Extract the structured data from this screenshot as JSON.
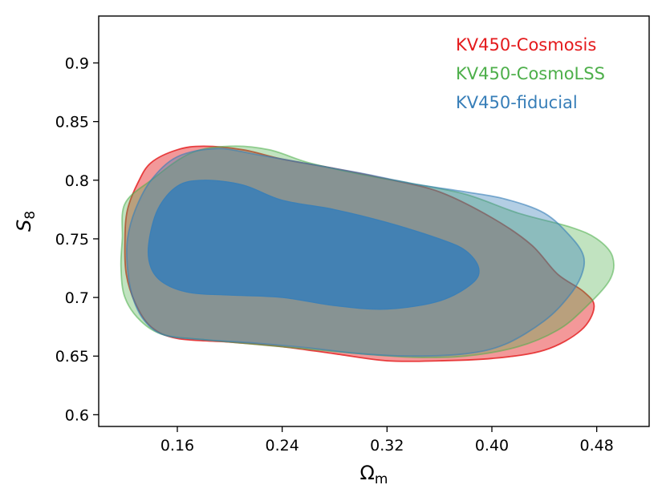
{
  "chart_data": {
    "type": "contour",
    "title": "",
    "xlabel": "Ω",
    "xlabel_sub": "m",
    "ylabel": "S",
    "ylabel_sub": "8",
    "xlim": [
      0.1,
      0.52
    ],
    "ylim": [
      0.59,
      0.94
    ],
    "x_ticks": [
      0.16,
      0.24,
      0.32,
      0.4,
      0.48
    ],
    "x_tick_labels": [
      "0.16",
      "0.24",
      "0.32",
      "0.40",
      "0.48"
    ],
    "y_ticks": [
      0.6,
      0.65,
      0.7,
      0.75,
      0.8,
      0.85,
      0.9
    ],
    "y_tick_labels": [
      "0.6",
      "0.65",
      "0.7",
      "0.75",
      "0.8",
      "0.85",
      "0.9"
    ],
    "grid": false,
    "legend_position": "top-right",
    "legend": [
      {
        "label": "KV450-Cosmosis",
        "color": "#e41a1c"
      },
      {
        "label": "KV450-CosmoLSS",
        "color": "#4daf4a"
      },
      {
        "label": "KV450-fiducial",
        "color": "#377eb8"
      }
    ],
    "series": [
      {
        "name": "KV450-Cosmosis",
        "color": "#e41a1c",
        "outer_contour": [
          [
            0.12,
            0.75
          ],
          [
            0.122,
            0.775
          ],
          [
            0.13,
            0.798
          ],
          [
            0.14,
            0.815
          ],
          [
            0.16,
            0.826
          ],
          [
            0.18,
            0.829
          ],
          [
            0.21,
            0.826
          ],
          [
            0.24,
            0.818
          ],
          [
            0.28,
            0.81
          ],
          [
            0.32,
            0.801
          ],
          [
            0.36,
            0.79
          ],
          [
            0.4,
            0.768
          ],
          [
            0.43,
            0.745
          ],
          [
            0.45,
            0.72
          ],
          [
            0.47,
            0.705
          ],
          [
            0.478,
            0.692
          ],
          [
            0.468,
            0.672
          ],
          [
            0.44,
            0.655
          ],
          [
            0.4,
            0.648
          ],
          [
            0.36,
            0.646
          ],
          [
            0.32,
            0.646
          ],
          [
            0.28,
            0.652
          ],
          [
            0.24,
            0.658
          ],
          [
            0.2,
            0.662
          ],
          [
            0.16,
            0.665
          ],
          [
            0.14,
            0.675
          ],
          [
            0.128,
            0.695
          ],
          [
            0.121,
            0.72
          ]
        ]
      },
      {
        "name": "KV450-CosmoLSS",
        "color": "#4daf4a",
        "outer_contour": [
          [
            0.118,
            0.75
          ],
          [
            0.12,
            0.78
          ],
          [
            0.14,
            0.8
          ],
          [
            0.17,
            0.823
          ],
          [
            0.2,
            0.829
          ],
          [
            0.23,
            0.826
          ],
          [
            0.26,
            0.815
          ],
          [
            0.3,
            0.805
          ],
          [
            0.34,
            0.797
          ],
          [
            0.38,
            0.788
          ],
          [
            0.42,
            0.772
          ],
          [
            0.46,
            0.76
          ],
          [
            0.48,
            0.75
          ],
          [
            0.492,
            0.735
          ],
          [
            0.49,
            0.715
          ],
          [
            0.47,
            0.69
          ],
          [
            0.45,
            0.672
          ],
          [
            0.42,
            0.658
          ],
          [
            0.38,
            0.65
          ],
          [
            0.34,
            0.649
          ],
          [
            0.3,
            0.652
          ],
          [
            0.26,
            0.656
          ],
          [
            0.22,
            0.66
          ],
          [
            0.18,
            0.664
          ],
          [
            0.15,
            0.668
          ],
          [
            0.132,
            0.68
          ],
          [
            0.12,
            0.7
          ],
          [
            0.117,
            0.725
          ]
        ]
      },
      {
        "name": "KV450-fiducial",
        "color": "#377eb8",
        "outer_contour": [
          [
            0.122,
            0.75
          ],
          [
            0.128,
            0.775
          ],
          [
            0.14,
            0.8
          ],
          [
            0.16,
            0.82
          ],
          [
            0.19,
            0.827
          ],
          [
            0.22,
            0.822
          ],
          [
            0.26,
            0.814
          ],
          [
            0.3,
            0.806
          ],
          [
            0.34,
            0.797
          ],
          [
            0.38,
            0.79
          ],
          [
            0.41,
            0.784
          ],
          [
            0.44,
            0.772
          ],
          [
            0.46,
            0.752
          ],
          [
            0.47,
            0.735
          ],
          [
            0.468,
            0.718
          ],
          [
            0.458,
            0.7
          ],
          [
            0.44,
            0.68
          ],
          [
            0.41,
            0.66
          ],
          [
            0.38,
            0.652
          ],
          [
            0.34,
            0.65
          ],
          [
            0.3,
            0.652
          ],
          [
            0.26,
            0.657
          ],
          [
            0.22,
            0.661
          ],
          [
            0.18,
            0.664
          ],
          [
            0.15,
            0.668
          ],
          [
            0.135,
            0.68
          ],
          [
            0.126,
            0.7
          ],
          [
            0.122,
            0.725
          ]
        ],
        "inner_contour": [
          [
            0.138,
            0.745
          ],
          [
            0.145,
            0.775
          ],
          [
            0.16,
            0.795
          ],
          [
            0.18,
            0.8
          ],
          [
            0.21,
            0.796
          ],
          [
            0.24,
            0.783
          ],
          [
            0.28,
            0.775
          ],
          [
            0.32,
            0.764
          ],
          [
            0.36,
            0.75
          ],
          [
            0.38,
            0.74
          ],
          [
            0.39,
            0.725
          ],
          [
            0.385,
            0.712
          ],
          [
            0.36,
            0.697
          ],
          [
            0.32,
            0.69
          ],
          [
            0.28,
            0.693
          ],
          [
            0.24,
            0.7
          ],
          [
            0.2,
            0.702
          ],
          [
            0.17,
            0.704
          ],
          [
            0.15,
            0.712
          ],
          [
            0.14,
            0.725
          ]
        ]
      }
    ]
  }
}
